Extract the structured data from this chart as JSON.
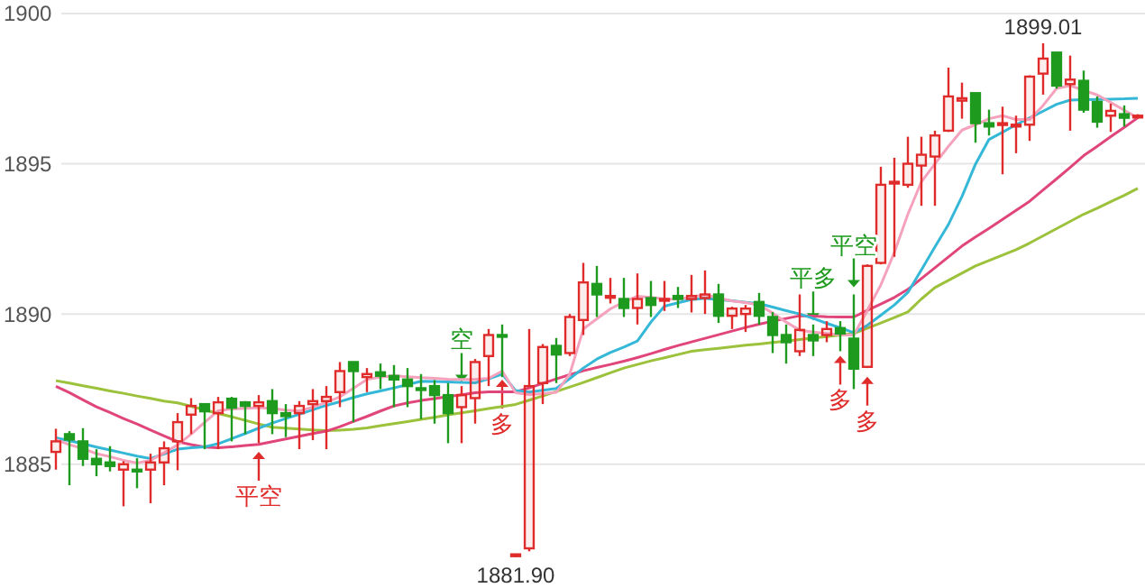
{
  "chart_data": {
    "type": "candlestick",
    "categories": [
      null,
      null,
      null,
      null,
      null,
      null,
      null,
      null,
      null,
      null,
      null,
      null,
      null,
      null,
      null,
      null,
      null,
      null,
      null,
      null,
      null,
      null,
      null,
      null,
      null,
      null,
      null,
      null,
      null,
      null,
      null,
      null,
      null,
      null,
      null,
      null,
      null,
      null,
      null,
      null,
      null,
      null,
      null,
      null,
      null,
      null,
      null,
      null,
      null,
      null,
      null,
      null,
      null,
      null,
      null,
      null,
      null,
      null,
      null,
      null,
      null,
      null,
      null,
      null,
      null,
      null,
      null,
      null,
      null,
      null,
      null,
      null,
      null,
      null,
      null,
      null,
      null,
      null,
      null,
      null,
      null
    ],
    "ohlc": [
      [
        1885.41,
        1886.18,
        1884.82,
        1885.76
      ],
      [
        1886.0,
        1886.1,
        1884.3,
        1885.82
      ],
      [
        1885.76,
        1886.2,
        1884.94,
        1885.18
      ],
      [
        1885.18,
        1885.5,
        1884.6,
        1885.0
      ],
      [
        1885.06,
        1885.6,
        1884.76,
        1884.94
      ],
      [
        1884.82,
        1885.1,
        1883.6,
        1885.0
      ],
      [
        1884.82,
        1885.2,
        1884.2,
        1884.76
      ],
      [
        1884.82,
        1885.35,
        1883.7,
        1885.06
      ],
      [
        1885.06,
        1885.76,
        1884.3,
        1885.53
      ],
      [
        1885.76,
        1886.7,
        1884.8,
        1886.4
      ],
      [
        1886.65,
        1887.2,
        1886.0,
        1886.94
      ],
      [
        1887.0,
        1887.0,
        1885.5,
        1886.76
      ],
      [
        1886.7,
        1887.24,
        1885.5,
        1887.06
      ],
      [
        1887.18,
        1887.24,
        1885.76,
        1886.88
      ],
      [
        1887.06,
        1887.1,
        1886.0,
        1886.94
      ],
      [
        1886.94,
        1887.3,
        1885.7,
        1887.06
      ],
      [
        1887.1,
        1887.5,
        1886.0,
        1886.7
      ],
      [
        1886.7,
        1887.0,
        1885.9,
        1886.6
      ],
      [
        1886.7,
        1887.1,
        1885.5,
        1886.94
      ],
      [
        1887.0,
        1887.5,
        1885.8,
        1887.1
      ],
      [
        1887.1,
        1887.6,
        1885.5,
        1887.24
      ],
      [
        1887.4,
        1888.4,
        1886.9,
        1888.1
      ],
      [
        1888.4,
        1888.4,
        1886.4,
        1888.1
      ],
      [
        1887.9,
        1888.2,
        1887.4,
        1888.0
      ],
      [
        1888.06,
        1888.35,
        1887.5,
        1887.94
      ],
      [
        1887.94,
        1888.3,
        1886.9,
        1887.82
      ],
      [
        1887.82,
        1888.2,
        1886.9,
        1887.6
      ],
      [
        1887.53,
        1888.0,
        1886.5,
        1887.47
      ],
      [
        1887.6,
        1887.8,
        1886.35,
        1887.3
      ],
      [
        1887.3,
        1887.7,
        1885.7,
        1886.7
      ],
      [
        1886.9,
        1887.6,
        1885.7,
        1887.3
      ],
      [
        1887.2,
        1888.5,
        1886.35,
        1888.4
      ],
      [
        1888.6,
        1889.5,
        1887.6,
        1889.3
      ],
      [
        1889.3,
        1889.65,
        1887.9,
        1889.24
      ],
      [
        1881.95,
        1882.0,
        1881.9,
        1882.0
      ],
      [
        1882.2,
        1889.5,
        1882.1,
        1887.6
      ],
      [
        1887.7,
        1889.0,
        1887.0,
        1888.9
      ],
      [
        1888.94,
        1889.2,
        1887.7,
        1888.65
      ],
      [
        1888.7,
        1890.0,
        1888.6,
        1889.9
      ],
      [
        1889.8,
        1891.7,
        1889.3,
        1891.05
      ],
      [
        1891.0,
        1891.6,
        1889.9,
        1890.65
      ],
      [
        1890.55,
        1891.2,
        1890.35,
        1890.6
      ],
      [
        1890.5,
        1891.2,
        1889.9,
        1890.2
      ],
      [
        1890.2,
        1891.35,
        1889.65,
        1890.5
      ],
      [
        1890.53,
        1891.1,
        1889.9,
        1890.3
      ],
      [
        1890.45,
        1891.1,
        1890.1,
        1890.5
      ],
      [
        1890.6,
        1890.9,
        1890.2,
        1890.5
      ],
      [
        1890.5,
        1891.3,
        1890.05,
        1890.6
      ],
      [
        1890.53,
        1891.45,
        1890.0,
        1890.65
      ],
      [
        1890.65,
        1891.0,
        1889.7,
        1889.94
      ],
      [
        1889.94,
        1890.24,
        1889.5,
        1890.18
      ],
      [
        1890.0,
        1890.3,
        1889.4,
        1890.18
      ],
      [
        1890.4,
        1890.7,
        1889.65,
        1889.94
      ],
      [
        1889.9,
        1890.06,
        1888.7,
        1889.3
      ],
      [
        1889.3,
        1889.65,
        1888.35,
        1889.06
      ],
      [
        1888.76,
        1890.65,
        1888.6,
        1889.47
      ],
      [
        1889.3,
        1889.65,
        1888.6,
        1889.12
      ],
      [
        1889.3,
        1889.76,
        1889.06,
        1889.5
      ],
      [
        1889.53,
        1889.76,
        1888.76,
        1889.35
      ],
      [
        1889.18,
        1890.65,
        1887.5,
        1888.18
      ],
      [
        1888.24,
        1891.65,
        1888.2,
        1891.6
      ],
      [
        1891.7,
        1894.9,
        1891.65,
        1894.3
      ],
      [
        1894.35,
        1895.2,
        1891.9,
        1894.4
      ],
      [
        1894.3,
        1895.9,
        1894.2,
        1895.0
      ],
      [
        1894.94,
        1895.9,
        1893.6,
        1895.3
      ],
      [
        1895.24,
        1896.1,
        1893.6,
        1895.94
      ],
      [
        1896.1,
        1898.2,
        1896.06,
        1897.24
      ],
      [
        1897.1,
        1897.7,
        1896.5,
        1897.18
      ],
      [
        1897.35,
        1897.35,
        1895.7,
        1896.35
      ],
      [
        1896.35,
        1896.8,
        1895.94,
        1896.24
      ],
      [
        1896.3,
        1896.9,
        1894.65,
        1896.35
      ],
      [
        1896.24,
        1896.6,
        1895.35,
        1896.3
      ],
      [
        1896.3,
        1897.94,
        1895.76,
        1897.9
      ],
      [
        1898.0,
        1899.01,
        1897.3,
        1898.5
      ],
      [
        1898.7,
        1898.7,
        1897.5,
        1897.6
      ],
      [
        1897.65,
        1898.6,
        1896.1,
        1897.8
      ],
      [
        1897.76,
        1898.1,
        1896.7,
        1896.8
      ],
      [
        1897.06,
        1897.24,
        1896.2,
        1896.4
      ],
      [
        1896.6,
        1897.0,
        1896.06,
        1896.76
      ],
      [
        1896.65,
        1896.94,
        1896.24,
        1896.53
      ],
      [
        1896.55,
        1896.65,
        1896.5,
        1896.6
      ]
    ],
    "colors": [
      "#e02b2b",
      "#1e9b1e",
      "#1e9b1e",
      "#1e9b1e",
      "#1e9b1e",
      "#e02b2b",
      "#1e9b1e",
      "#e02b2b",
      "#e02b2b",
      "#e02b2b",
      "#e02b2b",
      "#1e9b1e",
      "#e02b2b",
      "#1e9b1e",
      "#1e9b1e",
      "#e02b2b",
      "#1e9b1e",
      "#1e9b1e",
      "#e02b2b",
      "#e02b2b",
      "#e02b2b",
      "#e02b2b",
      "#1e9b1e",
      "#e02b2b",
      "#1e9b1e",
      "#1e9b1e",
      "#1e9b1e",
      "#1e9b1e",
      "#1e9b1e",
      "#1e9b1e",
      "#e02b2b",
      "#e02b2b",
      "#e02b2b",
      "#1e9b1e",
      "#e02b2b",
      "#e02b2b",
      "#e02b2b",
      "#1e9b1e",
      "#e02b2b",
      "#e02b2b",
      "#1e9b1e",
      "#e02b2b",
      "#1e9b1e",
      "#e02b2b",
      "#1e9b1e",
      "#e02b2b",
      "#1e9b1e",
      "#e02b2b",
      "#e02b2b",
      "#1e9b1e",
      "#e02b2b",
      "#e02b2b",
      "#1e9b1e",
      "#1e9b1e",
      "#1e9b1e",
      "#e02b2b",
      "#1e9b1e",
      "#e02b2b",
      "#1e9b1e",
      "#1e9b1e",
      "#e02b2b",
      "#e02b2b",
      "#e02b2b",
      "#e02b2b",
      "#e02b2b",
      "#e02b2b",
      "#e02b2b",
      "#e02b2b",
      "#1e9b1e",
      "#1e9b1e",
      "#e02b2b",
      "#e02b2b",
      "#e02b2b",
      "#e02b2b",
      "#1e9b1e",
      "#e02b2b",
      "#1e9b1e",
      "#1e9b1e",
      "#e02b2b",
      "#1e9b1e",
      "#e02b2b"
    ],
    "series": [
      {
        "type": "line",
        "color": "#9cc23c",
        "values": [
          1887.78,
          1887.7,
          1887.61,
          1887.53,
          1887.44,
          1887.36,
          1887.27,
          1887.19,
          1887.1,
          1887.04,
          1886.93,
          1886.81,
          1886.69,
          1886.58,
          1886.46,
          1886.34,
          1886.23,
          1886.2,
          1886.17,
          1886.14,
          1886.12,
          1886.13,
          1886.16,
          1886.21,
          1886.28,
          1886.35,
          1886.42,
          1886.49,
          1886.56,
          1886.64,
          1886.71,
          1886.78,
          1886.85,
          1886.92,
          1886.99,
          1887.13,
          1887.27,
          1887.42,
          1887.57,
          1887.72,
          1887.88,
          1888.04,
          1888.2,
          1888.32,
          1888.44,
          1888.54,
          1888.65,
          1888.76,
          1888.81,
          1888.86,
          1888.91,
          1888.96,
          1889.0,
          1889.05,
          1889.1,
          1889.15,
          1889.2,
          1889.25,
          1889.3,
          1889.35,
          1889.53,
          1889.7,
          1889.88,
          1890.07,
          1890.5,
          1890.88,
          1891.12,
          1891.36,
          1891.6,
          1891.78,
          1891.96,
          1892.14,
          1892.36,
          1892.6,
          1892.84,
          1893.08,
          1893.32,
          1893.52,
          1893.74,
          1893.95,
          1894.18
        ]
      },
      {
        "type": "line",
        "color": "#e0457b",
        "values": [
          1887.59,
          1887.38,
          1887.14,
          1886.91,
          1886.72,
          1886.52,
          1886.34,
          1886.14,
          1885.94,
          1885.75,
          1885.65,
          1885.57,
          1885.55,
          1885.58,
          1885.62,
          1885.66,
          1885.75,
          1885.84,
          1885.93,
          1886.02,
          1886.1,
          1886.25,
          1886.42,
          1886.59,
          1886.77,
          1886.94,
          1887.04,
          1887.12,
          1887.18,
          1887.25,
          1887.31,
          1887.38,
          1887.41,
          1887.41,
          1887.41,
          1887.54,
          1887.69,
          1887.84,
          1887.98,
          1888.11,
          1888.22,
          1888.32,
          1888.43,
          1888.55,
          1888.68,
          1888.82,
          1888.95,
          1889.07,
          1889.19,
          1889.31,
          1889.43,
          1889.55,
          1889.66,
          1889.76,
          1889.85,
          1889.94,
          1889.93,
          1889.91,
          1889.9,
          1889.9,
          1890.12,
          1890.33,
          1890.55,
          1890.82,
          1891.18,
          1891.54,
          1891.9,
          1892.26,
          1892.56,
          1892.85,
          1893.15,
          1893.45,
          1893.75,
          1894.13,
          1894.5,
          1894.88,
          1895.27,
          1895.58,
          1895.9,
          1896.21,
          1896.53
        ]
      },
      {
        "type": "line",
        "color": "#35b8d8",
        "values": [
          1885.88,
          1885.78,
          1885.68,
          1885.57,
          1885.47,
          1885.37,
          1885.27,
          1885.19,
          1885.34,
          1885.5,
          1885.55,
          1885.58,
          1885.68,
          1885.85,
          1886.02,
          1886.2,
          1886.37,
          1886.52,
          1886.66,
          1886.81,
          1886.96,
          1887.08,
          1887.22,
          1887.34,
          1887.44,
          1887.54,
          1887.65,
          1887.76,
          1887.75,
          1887.74,
          1887.72,
          1887.71,
          1887.84,
          1888.0,
          1887.45,
          1887.4,
          1887.46,
          1887.52,
          1887.85,
          1888.2,
          1888.5,
          1888.72,
          1888.9,
          1889.1,
          1889.73,
          1890.26,
          1890.37,
          1890.48,
          1890.52,
          1890.48,
          1890.44,
          1890.39,
          1890.34,
          1890.23,
          1890.11,
          1890.0,
          1889.85,
          1889.69,
          1889.54,
          1889.38,
          1889.62,
          1889.96,
          1890.3,
          1890.72,
          1891.47,
          1892.23,
          1892.98,
          1893.91,
          1894.99,
          1895.81,
          1896.05,
          1896.3,
          1896.52,
          1896.75,
          1896.98,
          1897.12,
          1897.13,
          1897.14,
          1897.15,
          1897.16,
          1897.18
        ]
      },
      {
        "type": "line",
        "color": "#f5a3bd",
        "values": [
          1885.82,
          1885.65,
          1885.52,
          1885.35,
          1885.25,
          1885.13,
          1885.04,
          1885.13,
          1885.38,
          1885.64,
          1886.0,
          1886.39,
          1886.78,
          1886.84,
          1886.86,
          1886.88,
          1886.85,
          1886.8,
          1886.77,
          1886.9,
          1887.06,
          1887.24,
          1887.53,
          1887.82,
          1887.9,
          1887.94,
          1887.91,
          1887.88,
          1887.86,
          1887.83,
          1887.82,
          1887.82,
          1887.86,
          1888.1,
          1887.38,
          1887.32,
          1887.35,
          1887.39,
          1888.0,
          1889.5,
          1889.84,
          1890.17,
          1890.4,
          1890.59,
          1890.55,
          1890.5,
          1890.49,
          1890.57,
          1890.64,
          1890.53,
          1890.43,
          1890.38,
          1890.3,
          1890.03,
          1889.73,
          1889.46,
          1889.4,
          1889.35,
          1889.31,
          1889.3,
          1890.12,
          1890.97,
          1892.05,
          1893.32,
          1894.4,
          1895.0,
          1895.58,
          1896.12,
          1896.3,
          1896.5,
          1896.6,
          1896.47,
          1896.47,
          1896.94,
          1897.51,
          1897.6,
          1897.44,
          1897.29,
          1897.04,
          1896.78,
          1896.53
        ]
      },
      {
        "type": "scatter",
        "color": "#e02b2b",
        "values": [
          null,
          null,
          null,
          null,
          null,
          null,
          null,
          null,
          null,
          null,
          null,
          null,
          null,
          null,
          null,
          1884.93,
          null,
          null,
          null,
          null,
          null,
          null,
          null,
          null,
          null,
          null,
          null,
          null,
          null,
          null,
          null,
          null,
          null,
          1887.33,
          null,
          null,
          null,
          null,
          null,
          null,
          null,
          null,
          null,
          null,
          null,
          null,
          null,
          null,
          null,
          null,
          null,
          null,
          null,
          null,
          null,
          null,
          null,
          null,
          1888.13,
          null,
          1887.43,
          null,
          null,
          null,
          null,
          null,
          null,
          null,
          null,
          null,
          null,
          null,
          null,
          null,
          null,
          null,
          null,
          null,
          null,
          null,
          null
        ],
        "value_labels": [
          null,
          null,
          null,
          null,
          null,
          null,
          null,
          null,
          null,
          null,
          null,
          null,
          null,
          null,
          null,
          "平空",
          null,
          null,
          null,
          null,
          null,
          null,
          null,
          null,
          null,
          null,
          null,
          null,
          null,
          null,
          null,
          null,
          null,
          "多",
          null,
          null,
          null,
          null,
          null,
          null,
          null,
          null,
          null,
          null,
          null,
          null,
          null,
          null,
          null,
          null,
          null,
          null,
          null,
          null,
          null,
          null,
          null,
          null,
          "多",
          null,
          "多",
          null,
          null,
          null,
          null,
          null,
          null,
          null,
          null,
          null,
          null,
          null,
          null,
          null,
          null,
          null,
          null,
          null,
          null,
          null,
          null
        ]
      },
      {
        "type": "scatter",
        "color": "#1e9b1e",
        "values": [
          null,
          null,
          null,
          null,
          null,
          null,
          null,
          null,
          null,
          null,
          null,
          null,
          null,
          null,
          null,
          null,
          null,
          null,
          null,
          null,
          null,
          null,
          null,
          null,
          null,
          null,
          null,
          null,
          null,
          null,
          1888.22,
          null,
          null,
          null,
          null,
          null,
          null,
          null,
          null,
          null,
          null,
          null,
          null,
          null,
          null,
          null,
          null,
          null,
          null,
          null,
          null,
          null,
          null,
          null,
          null,
          null,
          1890.27,
          null,
          null,
          1891.37,
          null,
          null,
          null,
          null,
          null,
          null,
          null,
          null,
          null,
          null,
          null,
          null,
          null,
          null,
          null,
          null,
          null,
          null,
          null,
          null,
          null
        ],
        "value_labels": [
          null,
          null,
          null,
          null,
          null,
          null,
          null,
          null,
          null,
          null,
          null,
          null,
          null,
          null,
          null,
          null,
          null,
          null,
          null,
          null,
          null,
          null,
          null,
          null,
          null,
          null,
          null,
          null,
          null,
          null,
          "空",
          null,
          null,
          null,
          null,
          null,
          null,
          null,
          null,
          null,
          null,
          null,
          null,
          null,
          null,
          null,
          null,
          null,
          null,
          null,
          null,
          null,
          null,
          null,
          null,
          null,
          "平多",
          null,
          null,
          "平空",
          null,
          null,
          null,
          null,
          null,
          null,
          null,
          null,
          null,
          null,
          null,
          null,
          null,
          null,
          null,
          null,
          null,
          null,
          null,
          null,
          null
        ]
      }
    ],
    "ylim": [
      1880.88,
      1900.45
    ],
    "yticks": [
      1885,
      1890,
      1895,
      1900
    ],
    "grid": "y",
    "tick_labels": "y",
    "annotations": [
      {
        "text": "1899.01",
        "y": 1899.01
      },
      {
        "text": "1881.90",
        "y": 1881.9
      }
    ]
  }
}
